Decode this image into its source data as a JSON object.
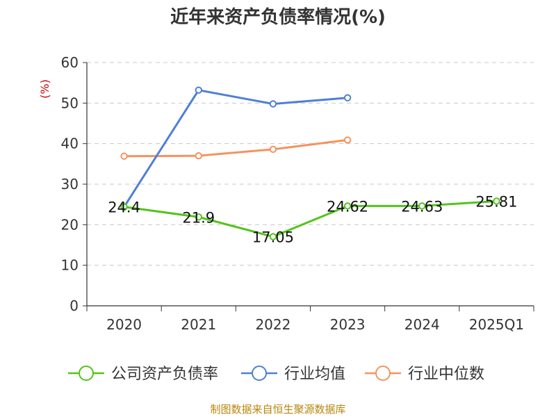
{
  "chart_data": {
    "type": "line",
    "title": "近年来资产负债率情况(%)",
    "ylabel": "(%)",
    "xlabel": "",
    "categories": [
      "2020",
      "2021",
      "2022",
      "2023",
      "2024",
      "2025Q1"
    ],
    "ylim": [
      0,
      60
    ],
    "yticks": [
      0,
      10,
      20,
      30,
      40,
      50,
      60
    ],
    "grid": true,
    "legend_position": "bottom",
    "series": [
      {
        "name": "公司资产负债率",
        "color": "#52c41a",
        "values": [
          24.4,
          21.9,
          17.05,
          24.62,
          24.63,
          25.81
        ],
        "labels": [
          "24.4",
          "21.9",
          "17.05",
          "24.62",
          "24.63",
          "25.81"
        ]
      },
      {
        "name": "行业均值",
        "color": "#4e7fd6",
        "values": [
          24.4,
          53.2,
          49.8,
          51.3,
          null,
          null
        ]
      },
      {
        "name": "行业中位数",
        "color": "#f4935f",
        "values": [
          36.9,
          37.0,
          38.6,
          40.9,
          null,
          null
        ]
      }
    ]
  },
  "source_note": "制图数据来自恒生聚源数据库"
}
